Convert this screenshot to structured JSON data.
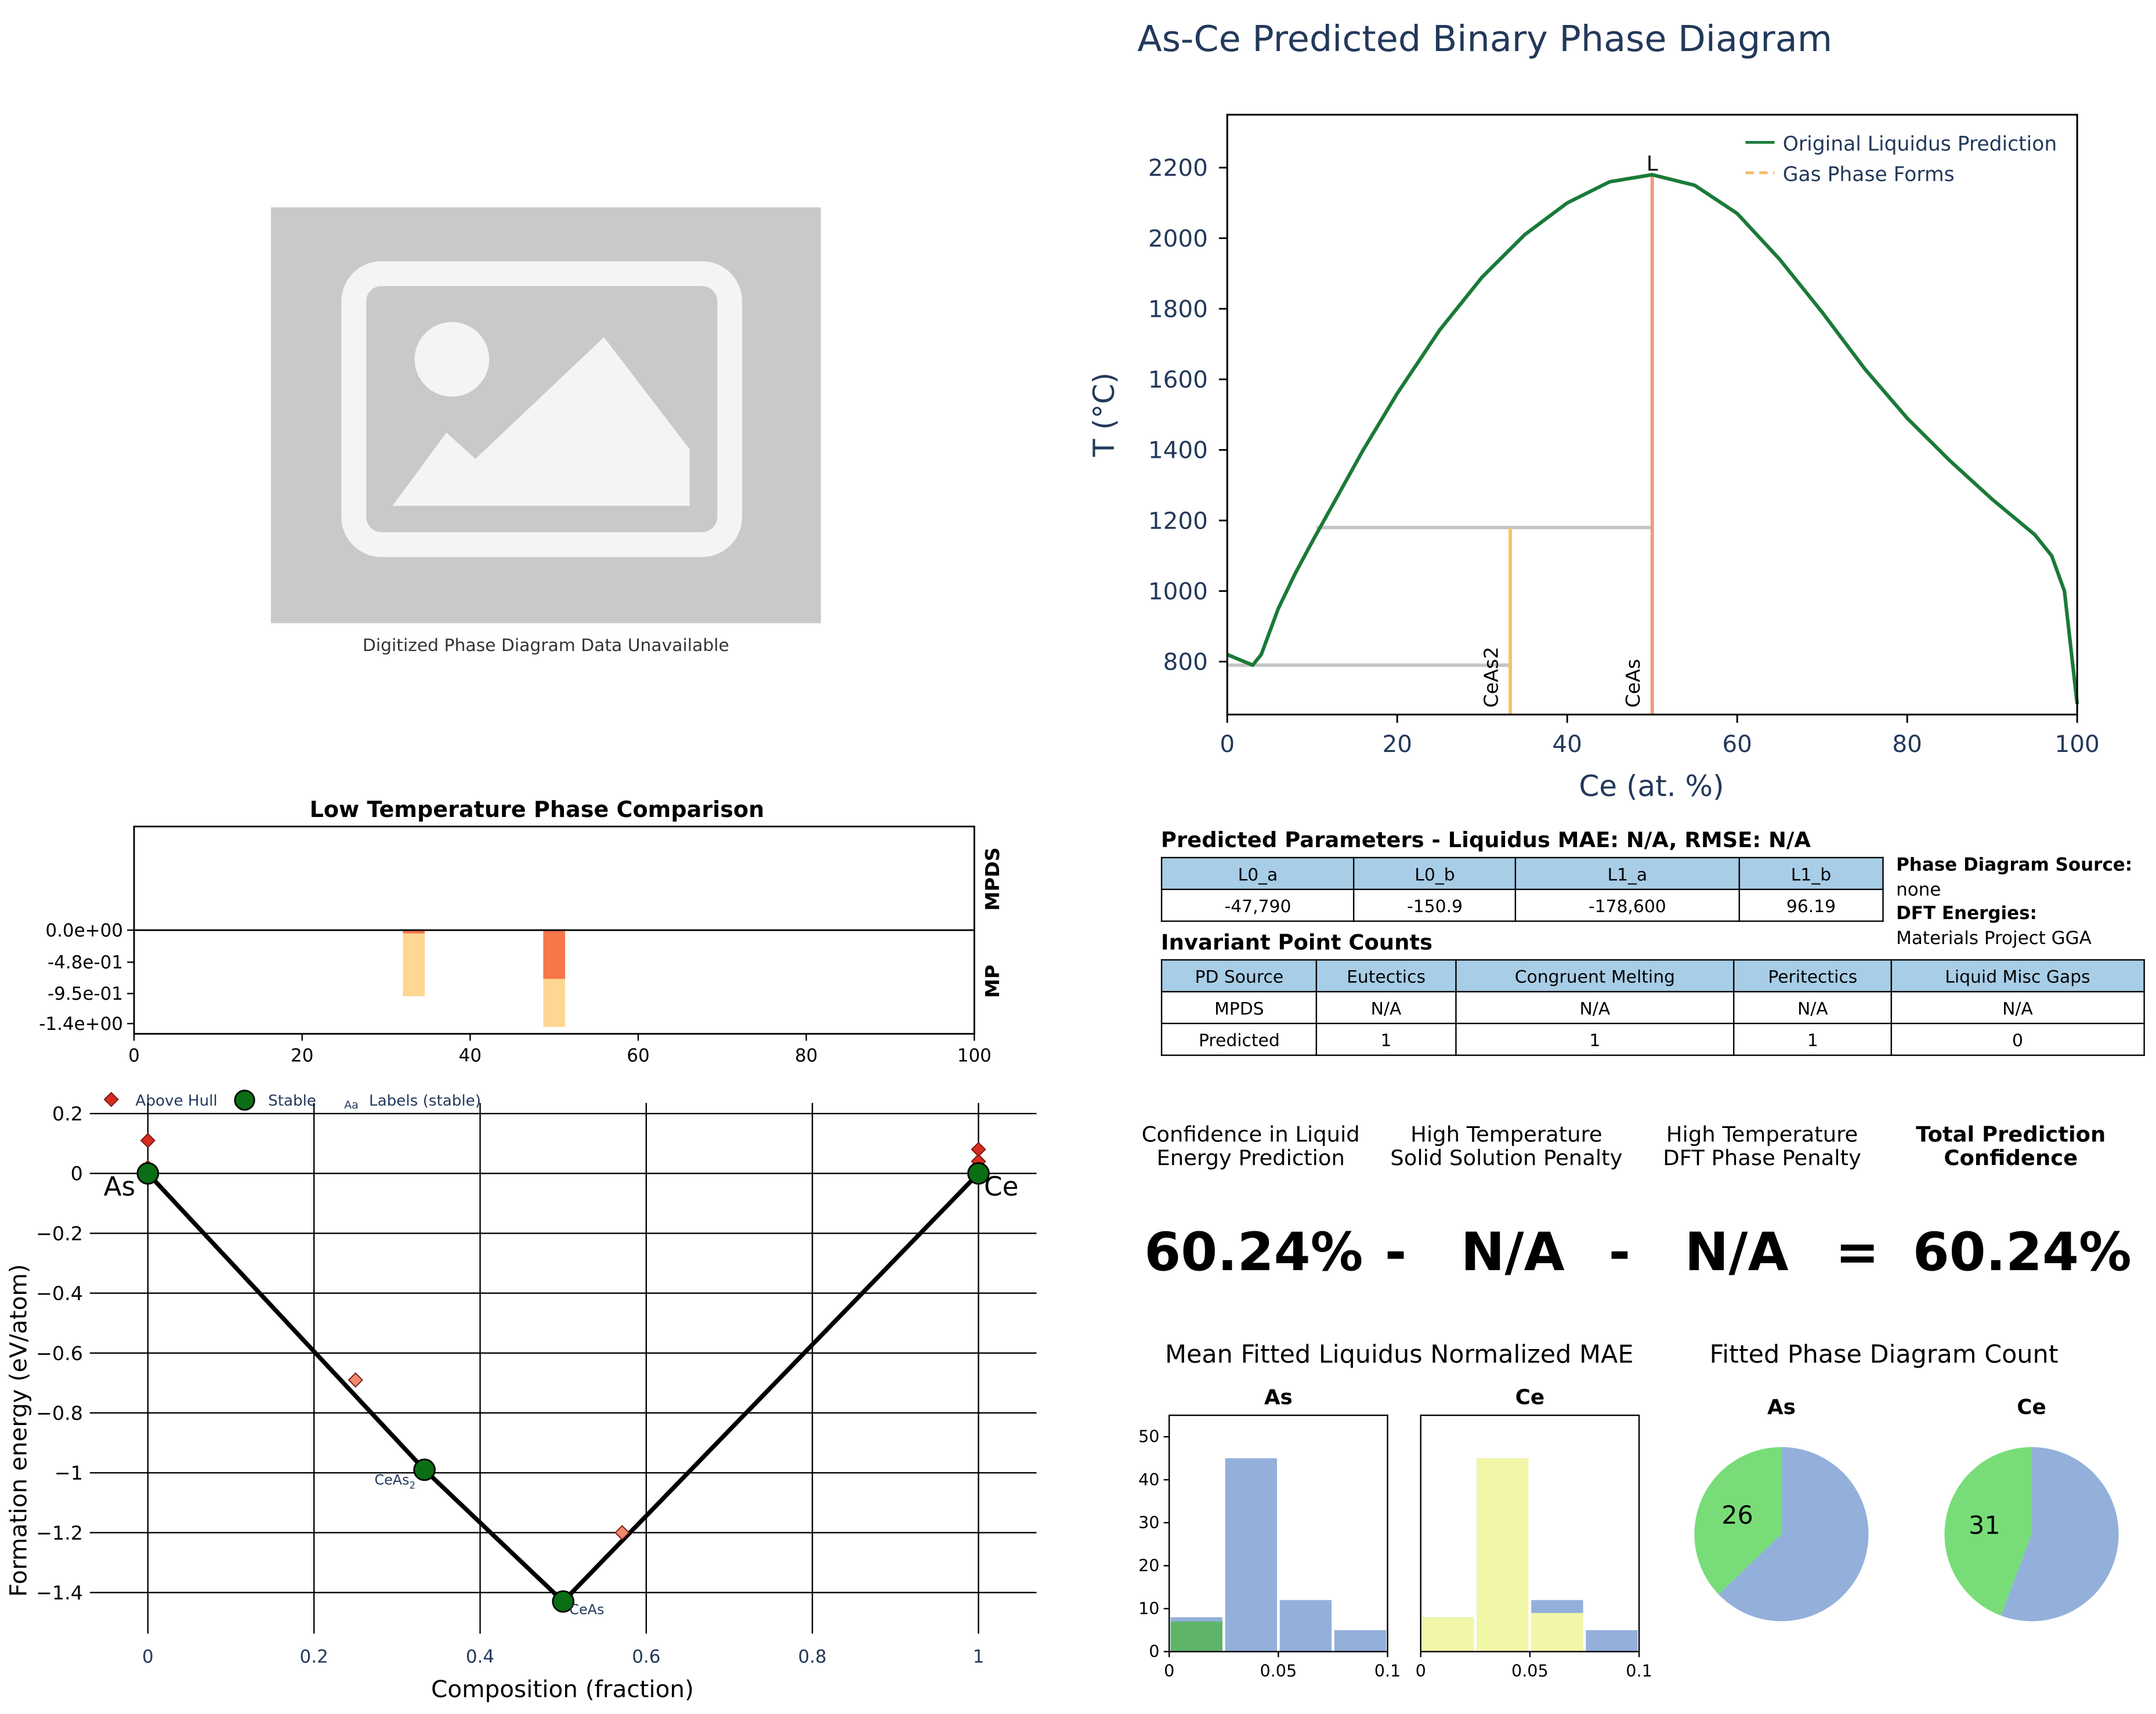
{
  "page_title": "As-Ce Predicted Binary Phase Diagram",
  "placeholder": {
    "caption": "Digitized Phase Diagram Data Unavailable",
    "icon": "image-placeholder-icon"
  },
  "params": {
    "title": "Predicted Parameters - Liquidus MAE: N/A, RMSE: N/A",
    "headers": [
      "L0_a",
      "L0_b",
      "L1_a",
      "L1_b"
    ],
    "values": [
      "-47,790",
      "-150.9",
      "-178,600",
      "96.19"
    ]
  },
  "invariants": {
    "title": "Invariant Point Counts",
    "headers": [
      "PD Source",
      "Eutectics",
      "Congruent Melting",
      "Peritectics",
      "Liquid Misc Gaps"
    ],
    "rows": [
      [
        "MPDS",
        "N/A",
        "N/A",
        "N/A",
        "N/A"
      ],
      [
        "Predicted",
        "1",
        "1",
        "1",
        "0"
      ]
    ]
  },
  "side_info": {
    "source_label": "Phase Diagram Source:",
    "source_value": "none",
    "dft_label": "DFT Energies:",
    "dft_value": "Materials Project GGA"
  },
  "confidence": {
    "headers": [
      [
        "Confidence in Liquid",
        "Energy Prediction"
      ],
      [
        "High Temperature",
        "Solid Solution Penalty"
      ],
      [
        "High Temperature",
        "DFT Phase Penalty"
      ],
      [
        "Total Prediction",
        "Confidence"
      ]
    ],
    "values": [
      "60.24%",
      "N/A",
      "N/A",
      "60.24%"
    ],
    "operators": [
      "-",
      "-",
      "="
    ]
  },
  "chart_data": [
    {
      "id": "phase_diagram",
      "type": "line",
      "xlabel": "Ce (at. %)",
      "ylabel": "T (°C)",
      "xlim": [
        0,
        100
      ],
      "ylim": [
        650,
        2350
      ],
      "xticks": [
        0,
        20,
        40,
        60,
        80,
        100
      ],
      "yticks": [
        800,
        1000,
        1200,
        1400,
        1600,
        1800,
        2000,
        2200
      ],
      "legend_position": "top-right",
      "legend": [
        "Original Liquidus Prediction",
        "Gas Phase Forms"
      ],
      "colors": {
        "liquidus": "#1a7a38",
        "ceas2": "#f5c26b",
        "ceas": "#ee9a78",
        "tie": "#c4c4c4"
      },
      "series": [
        {
          "name": "Original Liquidus Prediction",
          "x": [
            0,
            3,
            4,
            6,
            8,
            10,
            13,
            16,
            20,
            25,
            30,
            35,
            40,
            45,
            50,
            55,
            60,
            65,
            70,
            75,
            80,
            85,
            90,
            95,
            97,
            98.5,
            100
          ],
          "y": [
            820,
            790,
            820,
            950,
            1050,
            1140,
            1270,
            1400,
            1560,
            1740,
            1890,
            2010,
            2100,
            2160,
            2180,
            2150,
            2070,
            1940,
            1790,
            1630,
            1490,
            1370,
            1260,
            1160,
            1100,
            1000,
            680
          ]
        }
      ],
      "compound_lines": [
        {
          "label": "CeAs2",
          "x": 33.3,
          "y_top": 1180
        },
        {
          "label": "CeAs",
          "x": 50,
          "y_top": 2180
        }
      ],
      "tie_lines": [
        {
          "x": [
            0,
            33.3
          ],
          "y": 790
        },
        {
          "x": [
            10.5,
            50
          ],
          "y": 1180
        }
      ],
      "annotations": [
        {
          "text": "L",
          "x": 50,
          "y": 2180
        }
      ]
    },
    {
      "id": "low_temp_comparison",
      "type": "bar",
      "title": "Low Temperature Phase Comparison",
      "xlim": [
        0,
        100
      ],
      "xticks": [
        0,
        20,
        40,
        60,
        80,
        100
      ],
      "yticks": [
        "0.0e+00",
        "-4.8e-01",
        "-9.5e-01",
        "-1.4e+00"
      ],
      "row_labels": [
        "MPDS",
        "MP"
      ],
      "bars": [
        {
          "x": 33.3,
          "width": 2.6,
          "value": -0.99,
          "color": "#fdd387"
        },
        {
          "x": 33.3,
          "width": 2.6,
          "value": -0.05,
          "color": "#f46d43"
        },
        {
          "x": 50,
          "width": 2.6,
          "value": -1.45,
          "color": "#fdd387"
        },
        {
          "x": 50,
          "width": 2.6,
          "value": -0.73,
          "color": "#f46d43"
        }
      ]
    },
    {
      "id": "convex_hull",
      "type": "scatter",
      "xlabel": "Composition (fraction)",
      "ylabel": "Formation energy (eV/atom)",
      "xlim": [
        -0.05,
        1.05
      ],
      "ylim": [
        -1.5,
        0.2
      ],
      "xticks": [
        "0",
        "0.2",
        "0.4",
        "0.6",
        "0.8",
        "1"
      ],
      "yticks": [
        "0.2",
        "0",
        "−0.2",
        "−0.4",
        "−0.6",
        "−0.8",
        "−1",
        "−1.2",
        "−1.4"
      ],
      "legend": [
        "Above Hull",
        "Stable",
        "Labels (stable)"
      ],
      "legend_marker_text": "Aa",
      "hull_line": {
        "x": [
          0,
          0.333,
          0.5,
          1
        ],
        "y": [
          0,
          -0.99,
          -1.43,
          0
        ]
      },
      "stable_points": [
        {
          "x": 0,
          "y": 0,
          "label": "As"
        },
        {
          "x": 0.333,
          "y": -0.99,
          "label": "CeAs",
          "label_sub": "2"
        },
        {
          "x": 0.5,
          "y": -1.43,
          "label": "CeAs"
        },
        {
          "x": 1,
          "y": 0,
          "label": "Ce"
        }
      ],
      "above_hull": [
        {
          "x": 0,
          "y": 0.11
        },
        {
          "x": 0,
          "y": 0.02
        },
        {
          "x": 0.25,
          "y": -0.69
        },
        {
          "x": 0.571,
          "y": -1.2
        },
        {
          "x": 1,
          "y": 0.08
        },
        {
          "x": 1,
          "y": 0.04
        }
      ]
    },
    {
      "id": "mae_histograms",
      "type": "bar",
      "title": "Mean Fitted Liquidus Normalized MAE",
      "xlim": [
        0,
        0.1
      ],
      "ylim": [
        0,
        55
      ],
      "xticks": [
        "0",
        "0.05",
        "0.1"
      ],
      "yticks": [
        "0",
        "10",
        "20",
        "30",
        "40",
        "50"
      ],
      "panels": [
        {
          "title": "As",
          "bins": [
            0,
            0.025,
            0.05,
            0.075,
            0.1
          ],
          "total": [
            8,
            45,
            12,
            5
          ],
          "highlight": [
            7,
            0,
            0,
            0
          ],
          "colors": {
            "total": "#92b0da",
            "highlight": "#5eb56a"
          }
        },
        {
          "title": "Ce",
          "bins": [
            0,
            0.025,
            0.05,
            0.075,
            0.1
          ],
          "total": [
            8,
            45,
            12,
            5
          ],
          "highlight": [
            8,
            45,
            9,
            0
          ],
          "colors": {
            "total": "#92b0da",
            "highlight": "#f2f7a8"
          }
        }
      ]
    },
    {
      "id": "fitted_count",
      "type": "pie",
      "title": "Fitted Phase Diagram Count",
      "panels": [
        {
          "title": "As",
          "values": [
            26,
            44
          ],
          "labels": [
            "26",
            ""
          ],
          "colors": [
            "#78dd78",
            "#92b0da"
          ]
        },
        {
          "title": "Ce",
          "values": [
            31,
            39
          ],
          "labels": [
            "31",
            ""
          ],
          "colors": [
            "#78dd78",
            "#92b0da"
          ]
        }
      ]
    }
  ]
}
